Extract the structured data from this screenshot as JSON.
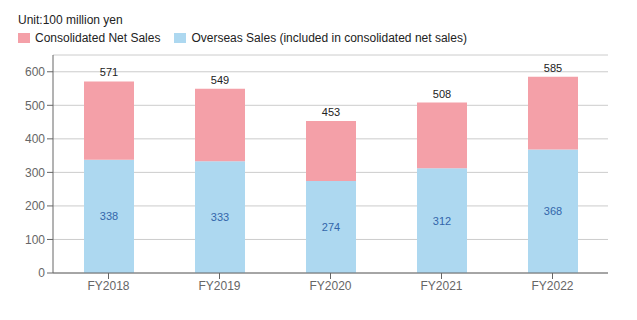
{
  "chart_data": {
    "type": "bar",
    "subtitle": "Unit:100 million yen",
    "categories": [
      "FY2018",
      "FY2019",
      "FY2020",
      "FY2021",
      "FY2022"
    ],
    "stacked": true,
    "series": [
      {
        "name": "Overseas Sales (included in consolidated net sales)",
        "color": "#ADD8F0",
        "values": [
          338,
          333,
          274,
          312,
          368
        ],
        "data_labels": true
      },
      {
        "name": "Consolidated Net Sales",
        "color": "#F4A0A8",
        "values": [
          233,
          216,
          179,
          196,
          217
        ]
      }
    ],
    "totals": [
      571,
      549,
      453,
      508,
      585
    ],
    "ylim": [
      0,
      650
    ],
    "yticks": [
      0,
      100,
      200,
      300,
      400,
      500,
      600
    ],
    "grid": true
  }
}
